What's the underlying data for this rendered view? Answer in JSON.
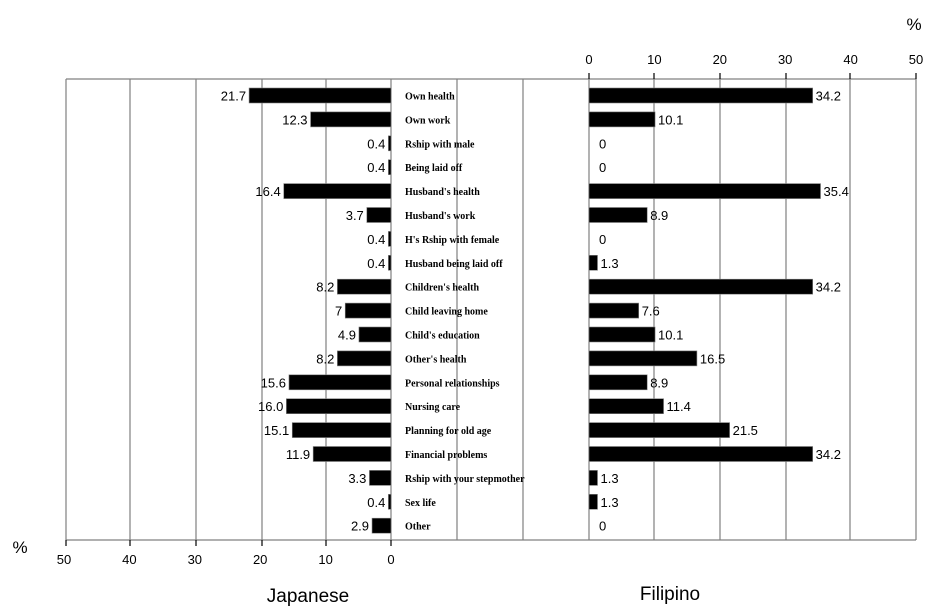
{
  "chart_data": {
    "type": "bar",
    "orientation": "horizontal",
    "layout": "back-to-back",
    "unit_label": "%",
    "categories": [
      "Own health",
      "Own work",
      "Rship with male",
      "Being laid off",
      "Husband's health",
      "Husband's work",
      "H's Rship with female",
      "Husband being laid off",
      "Children's health",
      "Child leaving home",
      "Child's education",
      "Other's health",
      "Personal relationships",
      "Nursing care",
      "Planning for old age",
      "Financial problems",
      "Rship with your stepmother",
      "Sex life",
      "Other"
    ],
    "series": [
      {
        "name": "Japanese",
        "side": "left",
        "values": [
          21.7,
          12.3,
          0.4,
          0.4,
          16.4,
          3.7,
          0.4,
          0.4,
          8.2,
          7,
          4.9,
          8.2,
          15.6,
          16.0,
          15.1,
          11.9,
          3.3,
          0.4,
          2.9
        ],
        "labels": [
          "21.7",
          "12.3",
          "0.4",
          "0.4",
          "16.4",
          "3.7",
          "0.4",
          "0.4",
          "8.2",
          "7",
          "4.9",
          "8.2",
          "15.6",
          "16.0",
          "15.1",
          "11.9",
          "3.3",
          "0.4",
          "2.9"
        ]
      },
      {
        "name": "Filipino",
        "side": "right",
        "values": [
          34.2,
          10.1,
          0,
          0,
          35.4,
          8.9,
          0,
          1.3,
          34.2,
          7.6,
          10.1,
          16.5,
          8.9,
          11.4,
          21.5,
          34.2,
          1.3,
          1.3,
          0
        ],
        "labels": [
          "34.2",
          "10.1",
          "0",
          "0",
          "35.4",
          "8.9",
          "0",
          "1.3",
          "34.2",
          "7.6",
          "10.1",
          "16.5",
          "8.9",
          "11.4",
          "21.5",
          "34.2",
          "1.3",
          "1.3",
          "0"
        ]
      }
    ],
    "left_axis": {
      "range": [
        50,
        0
      ],
      "ticks": [
        "50",
        "40",
        "30",
        "20",
        "10",
        "0"
      ],
      "tick_values": [
        50,
        40,
        30,
        20,
        10,
        0
      ],
      "position": "bottom"
    },
    "right_axis": {
      "range": [
        0,
        50
      ],
      "ticks": [
        "0",
        "10",
        "20",
        "30",
        "40",
        "50"
      ],
      "tick_values": [
        0,
        10,
        20,
        30,
        40,
        50
      ],
      "position": "top"
    },
    "grid": true,
    "bar_color": "#000000",
    "grid_color": "#808080"
  }
}
